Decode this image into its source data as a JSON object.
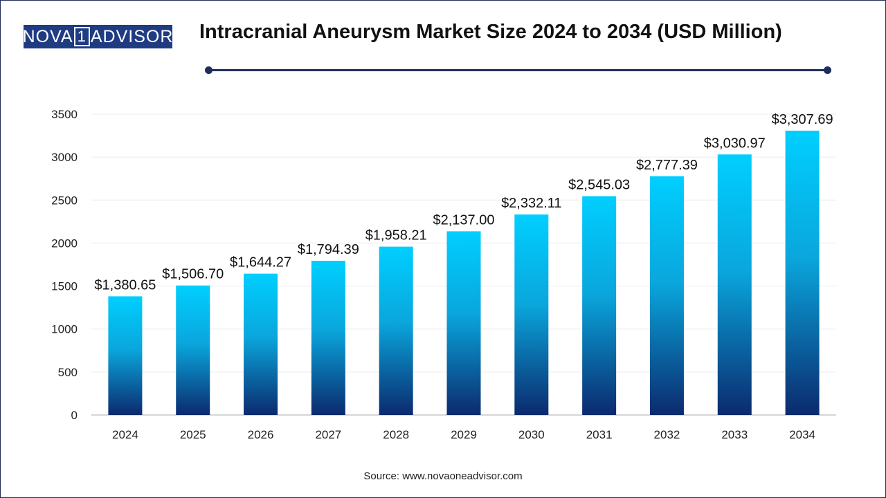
{
  "header": {
    "logo_part1": "NOVA",
    "logo_one": "1",
    "logo_part2": "ADVISOR",
    "title": "Intracranial Aneurysm Market Size 2024 to 2034 (USD Million)"
  },
  "footer": {
    "source": "Source: www.novaoneadvisor.com"
  },
  "colors": {
    "bar_top": "#00cfff",
    "bar_bottom": "#0b2a6e",
    "accent": "#1f2d5c"
  },
  "chart_data": {
    "type": "bar",
    "title": "Intracranial Aneurysm Market Size 2024 to 2034 (USD Million)",
    "categories": [
      "2024",
      "2025",
      "2026",
      "2027",
      "2028",
      "2029",
      "2030",
      "2031",
      "2032",
      "2033",
      "2034"
    ],
    "values": [
      1380.65,
      1506.7,
      1644.27,
      1794.39,
      1958.21,
      2137.0,
      2332.11,
      2545.03,
      2777.39,
      3030.97,
      3307.69
    ],
    "labels": [
      "$1,380.65",
      "$1,506.70",
      "$1,644.27",
      "$1,794.39",
      "$1,958.21",
      "$2,137.00",
      "$2,332.11",
      "$2,545.03",
      "$2,777.39",
      "$3,030.97",
      "$3,307.69"
    ],
    "yticks": [
      0,
      500,
      1000,
      1500,
      2000,
      2500,
      3000,
      3500
    ],
    "ylim": [
      0,
      3500
    ],
    "grid": true,
    "legend": "none"
  }
}
